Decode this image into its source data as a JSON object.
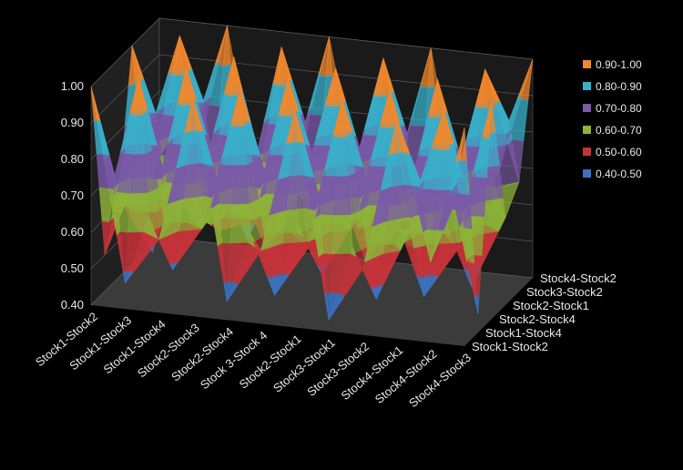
{
  "chart_data": {
    "type": "surface",
    "title": "",
    "zlabel": "",
    "x_categories": [
      "Stock1-Stock2",
      "Stock1-Stock3",
      "Stock1-Stock4",
      "Stock2-Stock3",
      "Stock2-Stock4",
      "Stock 3-Stock 4",
      "Stock2-Stock1",
      "Stock3-Stock1",
      "Stock3-Stock2",
      "Stock4-Stock1",
      "Stock4-Stock2",
      "Stock4-Stock3"
    ],
    "y_categories": [
      "Stock1-Stock2",
      "Stock1-Stock4",
      "Stock2-Stock4",
      "Stock2-Stock1",
      "Stock3-Stock2",
      "Stock4-Stock2"
    ],
    "z_ticks": [
      "0.40",
      "0.50",
      "0.60",
      "0.70",
      "0.80",
      "0.90",
      "1.00"
    ],
    "zlim": [
      0.4,
      1.0
    ],
    "legend": [
      {
        "label": "0.90-1.00",
        "color": "#F0882E"
      },
      {
        "label": "0.80-0.90",
        "color": "#3AAFC9"
      },
      {
        "label": "0.70-0.80",
        "color": "#7A59A8"
      },
      {
        "label": "0.60-0.70",
        "color": "#8DB33A"
      },
      {
        "label": "0.50-0.60",
        "color": "#C8333A"
      },
      {
        "label": "0.40-0.50",
        "color": "#3A72C2"
      }
    ],
    "legend_position": "right",
    "values": [
      [
        1.0,
        0.47,
        0.6,
        1.0,
        0.45,
        0.6,
        1.0,
        0.43,
        0.58,
        1.0,
        0.62,
        1.0
      ],
      [
        0.5,
        1.0,
        0.48,
        0.62,
        1.0,
        0.44,
        0.58,
        1.0,
        0.46,
        0.66,
        1.0,
        0.45
      ],
      [
        0.62,
        0.48,
        1.0,
        0.56,
        0.6,
        1.0,
        0.47,
        0.63,
        1.0,
        0.44,
        0.58,
        1.0
      ],
      [
        1.0,
        0.64,
        0.52,
        1.0,
        0.47,
        0.66,
        1.0,
        0.45,
        0.6,
        1.0,
        0.44,
        0.64
      ],
      [
        0.56,
        1.0,
        0.65,
        0.46,
        1.0,
        0.52,
        0.62,
        1.0,
        0.48,
        0.63,
        1.0,
        0.7
      ],
      [
        0.66,
        0.58,
        1.0,
        0.5,
        0.6,
        1.0,
        0.55,
        0.64,
        1.0,
        0.52,
        0.68,
        1.0
      ]
    ]
  }
}
